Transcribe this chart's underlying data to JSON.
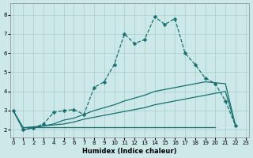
{
  "background_color": "#cce8e8",
  "grid_color": "#aacccc",
  "line_color": "#1a7070",
  "xlim": [
    -0.3,
    23.3
  ],
  "ylim": [
    1.6,
    8.6
  ],
  "xticks": [
    0,
    1,
    2,
    3,
    4,
    5,
    6,
    7,
    8,
    9,
    10,
    11,
    12,
    13,
    14,
    15,
    16,
    17,
    18,
    19,
    20,
    21,
    22,
    23
  ],
  "yticks": [
    2,
    3,
    4,
    5,
    6,
    7,
    8
  ],
  "xlabel": "Humidex (Indice chaleur)",
  "line1_x": [
    0,
    1,
    2,
    3,
    4,
    5,
    6,
    7,
    8,
    9,
    10,
    11,
    12,
    13,
    14,
    15,
    16,
    17,
    18,
    19,
    20,
    21,
    22
  ],
  "line1_y": [
    3.0,
    2.0,
    2.1,
    2.3,
    2.9,
    3.0,
    3.05,
    2.8,
    4.2,
    4.5,
    5.4,
    7.0,
    6.5,
    6.7,
    7.9,
    7.5,
    7.8,
    6.0,
    5.4,
    4.7,
    4.4,
    3.5,
    2.2
  ],
  "line2_x": [
    0,
    1,
    2,
    3,
    4,
    5,
    6,
    7,
    8,
    9,
    10,
    11,
    12,
    13,
    14,
    15,
    16,
    17,
    18,
    19,
    20,
    21,
    22
  ],
  "line2_y": [
    3.0,
    2.1,
    2.15,
    2.2,
    2.3,
    2.5,
    2.6,
    2.8,
    3.0,
    3.15,
    3.3,
    3.5,
    3.65,
    3.8,
    4.0,
    4.1,
    4.2,
    4.3,
    4.4,
    4.5,
    4.45,
    4.4,
    2.2
  ],
  "line3_x": [
    0,
    1,
    2,
    3,
    4,
    5,
    6,
    7,
    8,
    9,
    10,
    11,
    12,
    13,
    14,
    15,
    16,
    17,
    18,
    19,
    20,
    21,
    22
  ],
  "line3_y": [
    3.0,
    2.0,
    2.1,
    2.2,
    2.25,
    2.3,
    2.4,
    2.55,
    2.65,
    2.75,
    2.85,
    2.95,
    3.05,
    3.15,
    3.3,
    3.4,
    3.5,
    3.6,
    3.7,
    3.8,
    3.9,
    4.0,
    2.2
  ],
  "line4_x": [
    1,
    20
  ],
  "line4_y": [
    2.15,
    2.15
  ]
}
